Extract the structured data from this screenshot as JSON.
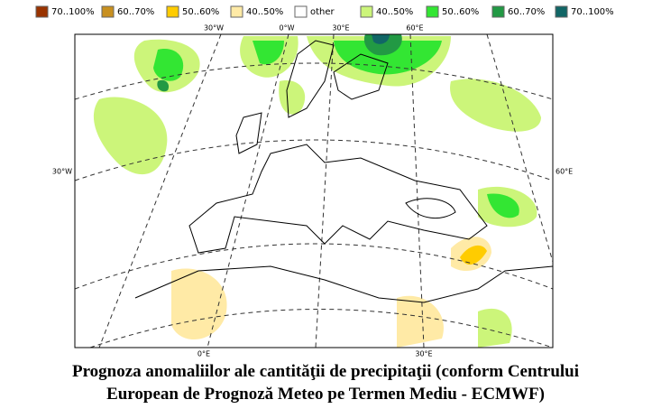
{
  "legend": {
    "items": [
      {
        "label": "70..100%",
        "color": "#993300"
      },
      {
        "label": "60..70%",
        "color": "#c89020"
      },
      {
        "label": "50..60%",
        "color": "#ffcc00"
      },
      {
        "label": "40..50%",
        "color": "#ffeaa6"
      },
      {
        "label": "other",
        "color": "#ffffff"
      },
      {
        "label": "40..50%",
        "color": "#ccf57a"
      },
      {
        "label": "50..60%",
        "color": "#33e633"
      },
      {
        "label": "60..70%",
        "color": "#229944"
      },
      {
        "label": "70..100%",
        "color": "#116666"
      }
    ]
  },
  "map": {
    "labels": {
      "top": [
        "30°W",
        "0°W",
        "30°E",
        "60°E"
      ],
      "left": "30°W",
      "right": "60°E",
      "bottom": [
        "0°E",
        "30°E"
      ]
    }
  },
  "caption": {
    "lines": [
      "Prognoza anomaliilor ale cantităţii de precipitaţii (conform Centrului",
      "European de Prognoză Meteo pe Termen Mediu - ECMWF)"
    ]
  }
}
